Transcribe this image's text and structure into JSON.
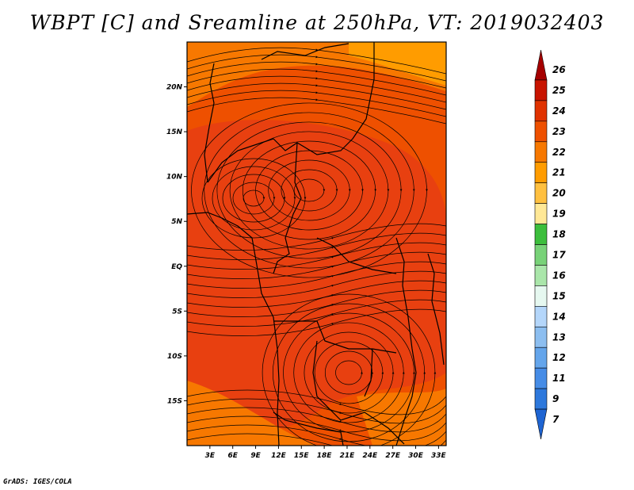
{
  "title": "WBPT [C] and Sreamline at 250hPa, VT: 2019032403",
  "credit": "GrADS: IGES/COLA",
  "map": {
    "lat_labels": [
      "20N",
      "15N",
      "10N",
      "5N",
      "EQ",
      "5S",
      "10S",
      "15S"
    ],
    "lat_values": [
      20,
      15,
      10,
      5,
      0,
      -5,
      -10,
      -15
    ],
    "lon_labels": [
      "3E",
      "6E",
      "9E",
      "12E",
      "15E",
      "18E",
      "21E",
      "24E",
      "27E",
      "30E",
      "33E"
    ],
    "lon_values": [
      3,
      6,
      9,
      12,
      15,
      18,
      21,
      24,
      27,
      30,
      33
    ],
    "lat_range": [
      -20,
      25
    ],
    "lon_range": [
      0,
      34
    ]
  },
  "colorbar": {
    "labels": [
      "26",
      "25",
      "24",
      "23",
      "22",
      "21",
      "20",
      "19",
      "18",
      "17",
      "16",
      "15",
      "14",
      "13",
      "12",
      "11",
      "9",
      "7"
    ],
    "colors": [
      "#a50000",
      "#c81400",
      "#e03200",
      "#ee5000",
      "#f77800",
      "#ff9c00",
      "#ffc040",
      "#ffe896",
      "#3cbe3c",
      "#78d278",
      "#aae6aa",
      "#e6f8f0",
      "#b4d6fa",
      "#8cbef0",
      "#64a5eb",
      "#468ce6",
      "#2d78dc",
      "#1e64d2"
    ]
  },
  "colors": {
    "field_main": "#ee5000",
    "field_warm": "#e84010",
    "field_cool": "#f77800",
    "field_light": "#ff9c00"
  }
}
